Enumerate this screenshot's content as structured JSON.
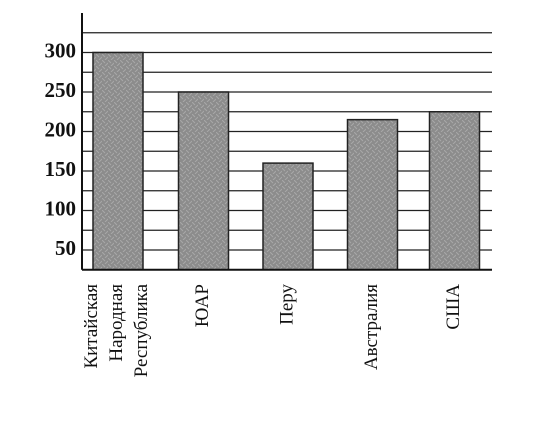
{
  "chart_data": {
    "type": "bar",
    "categories": [
      "Китайская Народная Республика",
      "ЮАР",
      "Перу",
      "Австралия",
      "США"
    ],
    "values": [
      300,
      250,
      160,
      215,
      225
    ],
    "color": "#8c8c8c",
    "ylim": [
      25,
      350
    ],
    "yticks": [
      50,
      100,
      150,
      200,
      250,
      300
    ],
    "minor_yticks": [
      25,
      75,
      125,
      175,
      225,
      275,
      325
    ],
    "grid": true
  }
}
